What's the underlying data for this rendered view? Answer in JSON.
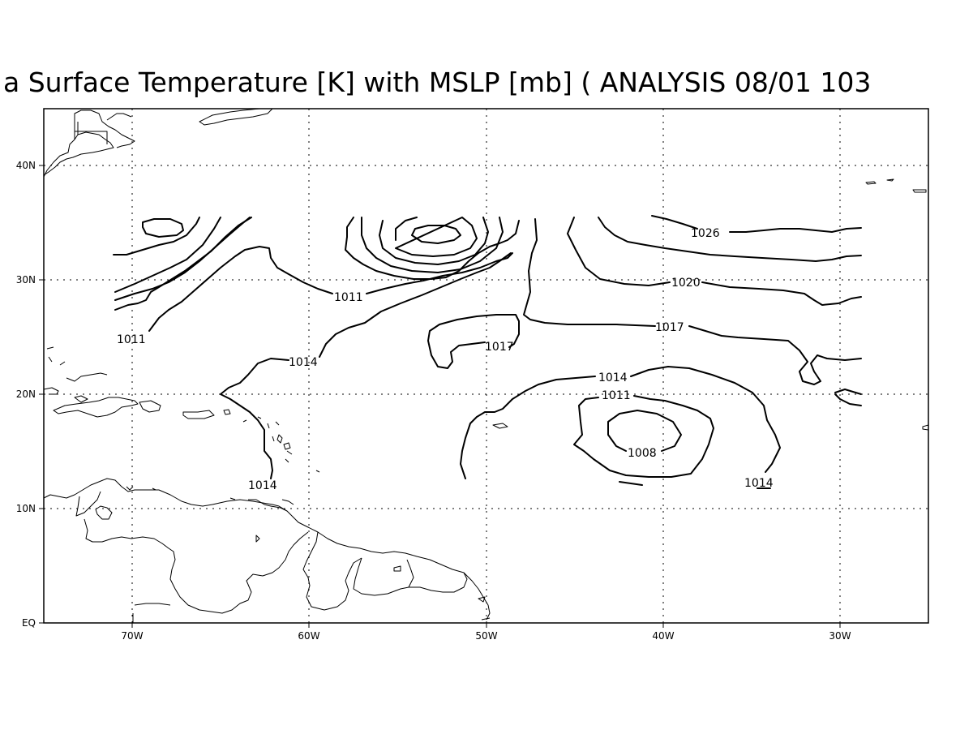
{
  "title": "a Surface Temperature [K] with MSLP [mb] ( ANALYSIS 08/01 103",
  "axes": {
    "x_ticks": [
      "70W",
      "60W",
      "50W",
      "40W",
      "30W"
    ],
    "y_ticks": [
      "40N",
      "30N",
      "20N",
      "10N",
      "EQ"
    ],
    "lon_range": [
      -75,
      -25
    ],
    "lat_range": [
      0,
      45
    ],
    "grid": "dotted"
  },
  "contours": {
    "variable": "MSLP",
    "unit": "mb",
    "labels": [
      "1026",
      "1020",
      "1017",
      "1017",
      "1011",
      "1011",
      "1014",
      "1014",
      "1014",
      "1011",
      "1008",
      "1014"
    ]
  },
  "colors": {
    "contour": "#000000",
    "coastline": "#000000",
    "background": "#ffffff"
  }
}
